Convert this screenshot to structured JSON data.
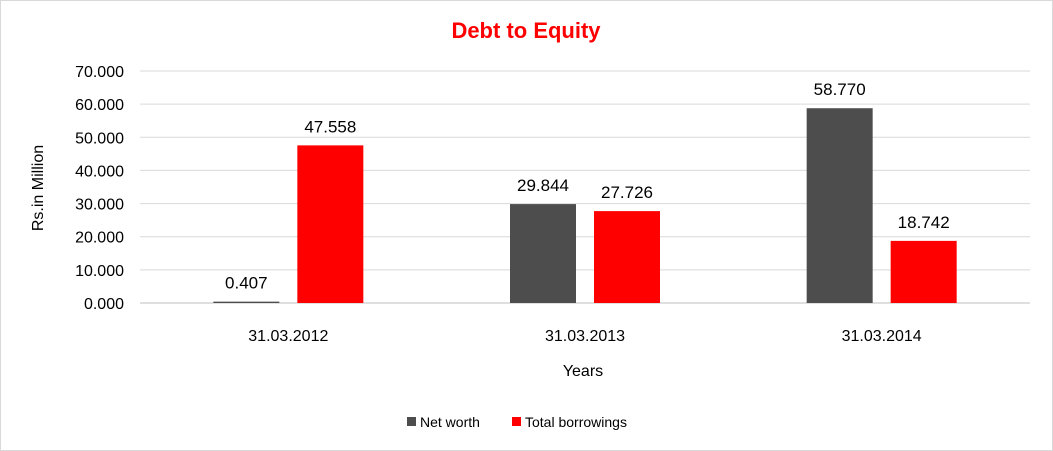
{
  "chart_data": {
    "type": "bar",
    "title": "Debt to Equity",
    "xlabel": "Years",
    "ylabel": "Rs.in Million",
    "categories": [
      "31.03.2012",
      "31.03.2013",
      "31.03.2014"
    ],
    "series": [
      {
        "name": "Net worth",
        "color": "#4d4d4d",
        "values": [
          0.407,
          29.844,
          58.77
        ],
        "labels": [
          "0.407",
          "29.844",
          "58.770"
        ]
      },
      {
        "name": "Total borrowings",
        "color": "#ff0000",
        "values": [
          47.558,
          27.726,
          18.742
        ],
        "labels": [
          "47.558",
          "27.726",
          "18.742"
        ]
      }
    ],
    "ylim": [
      0,
      70
    ],
    "yticks": [
      0,
      10,
      20,
      30,
      40,
      50,
      60,
      70
    ],
    "ytick_labels": [
      "0.000",
      "10.000",
      "20.000",
      "30.000",
      "40.000",
      "50.000",
      "60.000",
      "70.000"
    ],
    "grid": true,
    "legend_position": "bottom",
    "title_color": "#ff0000"
  }
}
